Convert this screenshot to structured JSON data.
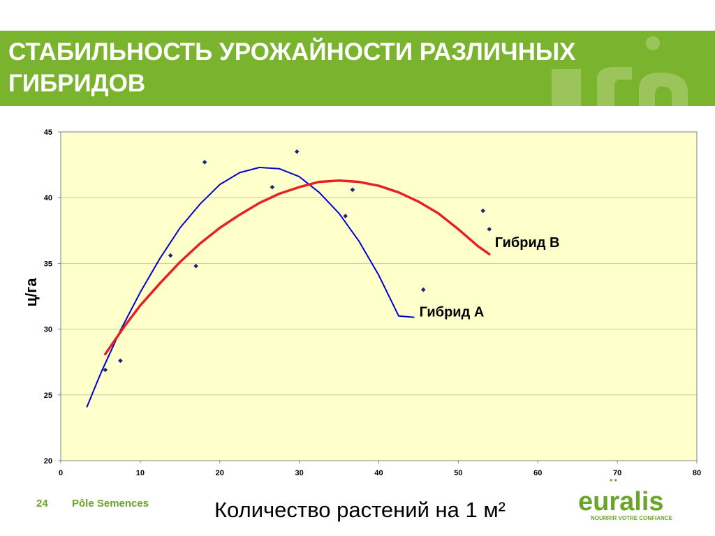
{
  "slide": {
    "title_line1": "СТАБИЛЬНОСТЬ УРОЖАЙНОСТИ РАЗЛИЧНЫХ",
    "title_line2": "ГИБРИДОВ",
    "page_number": "24",
    "department": "Pôle Semences",
    "x_caption": "Количество растений на 1 м²",
    "brand_color": "#7ab32e"
  },
  "logo": {
    "word": "euralis",
    "tagline": "NOURRIR VOTRE CONFIANCE"
  },
  "chart_data": {
    "type": "scatter",
    "ylabel": "ц/га",
    "xlim": [
      0,
      80
    ],
    "ylim": [
      20,
      45
    ],
    "x_ticks": [
      0,
      10,
      20,
      30,
      40,
      50,
      60,
      70,
      80
    ],
    "y_ticks": [
      20,
      25,
      30,
      35,
      40,
      45
    ],
    "y_tick_labels": [
      "20",
      "25",
      "30",
      "35",
      "40",
      "45"
    ],
    "grid": true,
    "plot_background": "#ffffcc",
    "points": [
      {
        "x": 5.6,
        "y": 26.9
      },
      {
        "x": 7.5,
        "y": 27.6
      },
      {
        "x": 13.8,
        "y": 35.6
      },
      {
        "x": 17.0,
        "y": 34.8
      },
      {
        "x": 18.1,
        "y": 42.7
      },
      {
        "x": 26.6,
        "y": 40.8
      },
      {
        "x": 29.7,
        "y": 43.5
      },
      {
        "x": 35.8,
        "y": 38.6
      },
      {
        "x": 36.7,
        "y": 40.6
      },
      {
        "x": 45.6,
        "y": 33.0
      },
      {
        "x": 53.1,
        "y": 39.0
      },
      {
        "x": 53.9,
        "y": 37.6
      }
    ],
    "point_color": "#1a237e",
    "series": [
      {
        "name": "Гибрид А",
        "color": "#0000cc",
        "x": [
          3.3,
          5,
          7.5,
          10,
          12.5,
          15,
          17.5,
          20,
          22.5,
          25,
          27.5,
          30,
          32.5,
          35,
          37.5,
          40,
          42.5,
          44.4
        ],
        "values": [
          24.1,
          26.6,
          29.9,
          32.8,
          35.4,
          37.7,
          39.5,
          41.0,
          41.9,
          42.3,
          42.2,
          41.6,
          40.4,
          38.8,
          36.7,
          34.1,
          31.0,
          30.9
        ]
      },
      {
        "name": "Гибрид В",
        "color": "#e52222",
        "x": [
          5.6,
          8,
          10,
          12.5,
          15,
          17.5,
          20,
          22.5,
          25,
          27.5,
          30,
          32.5,
          35,
          37.5,
          40,
          42.5,
          45,
          47.5,
          50,
          52.5,
          53.9
        ],
        "values": [
          28.1,
          30.2,
          31.8,
          33.5,
          35.1,
          36.5,
          37.7,
          38.7,
          39.6,
          40.3,
          40.8,
          41.2,
          41.3,
          41.2,
          40.9,
          40.4,
          39.7,
          38.8,
          37.6,
          36.3,
          35.7
        ]
      }
    ]
  }
}
